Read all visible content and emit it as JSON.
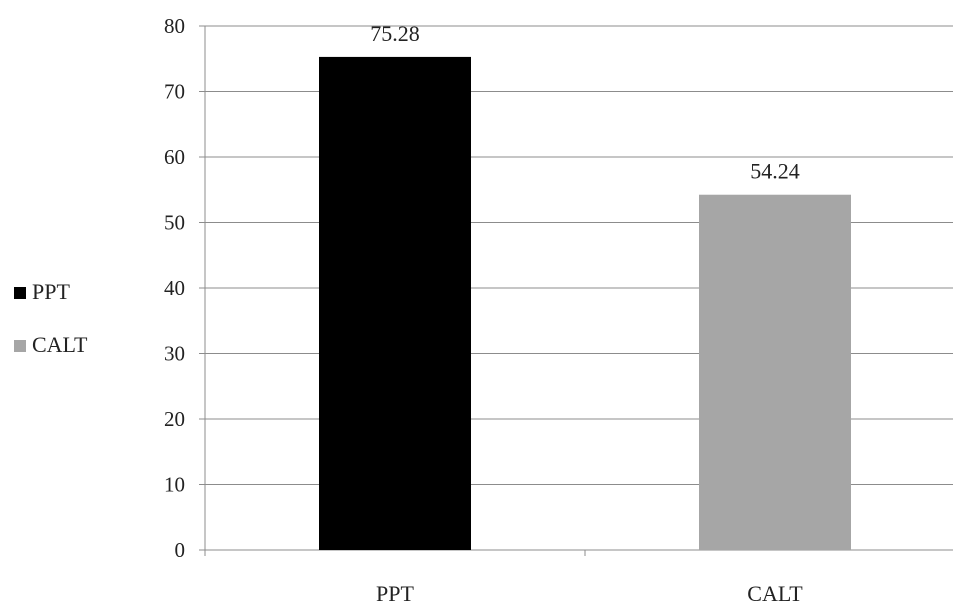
{
  "chart_data": {
    "type": "bar",
    "categories": [
      "PPT",
      "CALT"
    ],
    "values": [
      75.28,
      54.24
    ],
    "data_labels": [
      "75.28",
      "54.24"
    ],
    "colors": [
      "#000000",
      "#a6a6a6"
    ],
    "ylim": [
      0,
      80
    ],
    "yticks": [
      0,
      10,
      20,
      30,
      40,
      50,
      60,
      70,
      80
    ],
    "grid": true,
    "legend": {
      "position": "left",
      "entries": [
        {
          "label": "PPT",
          "color": "#000000"
        },
        {
          "label": "CALT",
          "color": "#a6a6a6"
        }
      ]
    }
  }
}
